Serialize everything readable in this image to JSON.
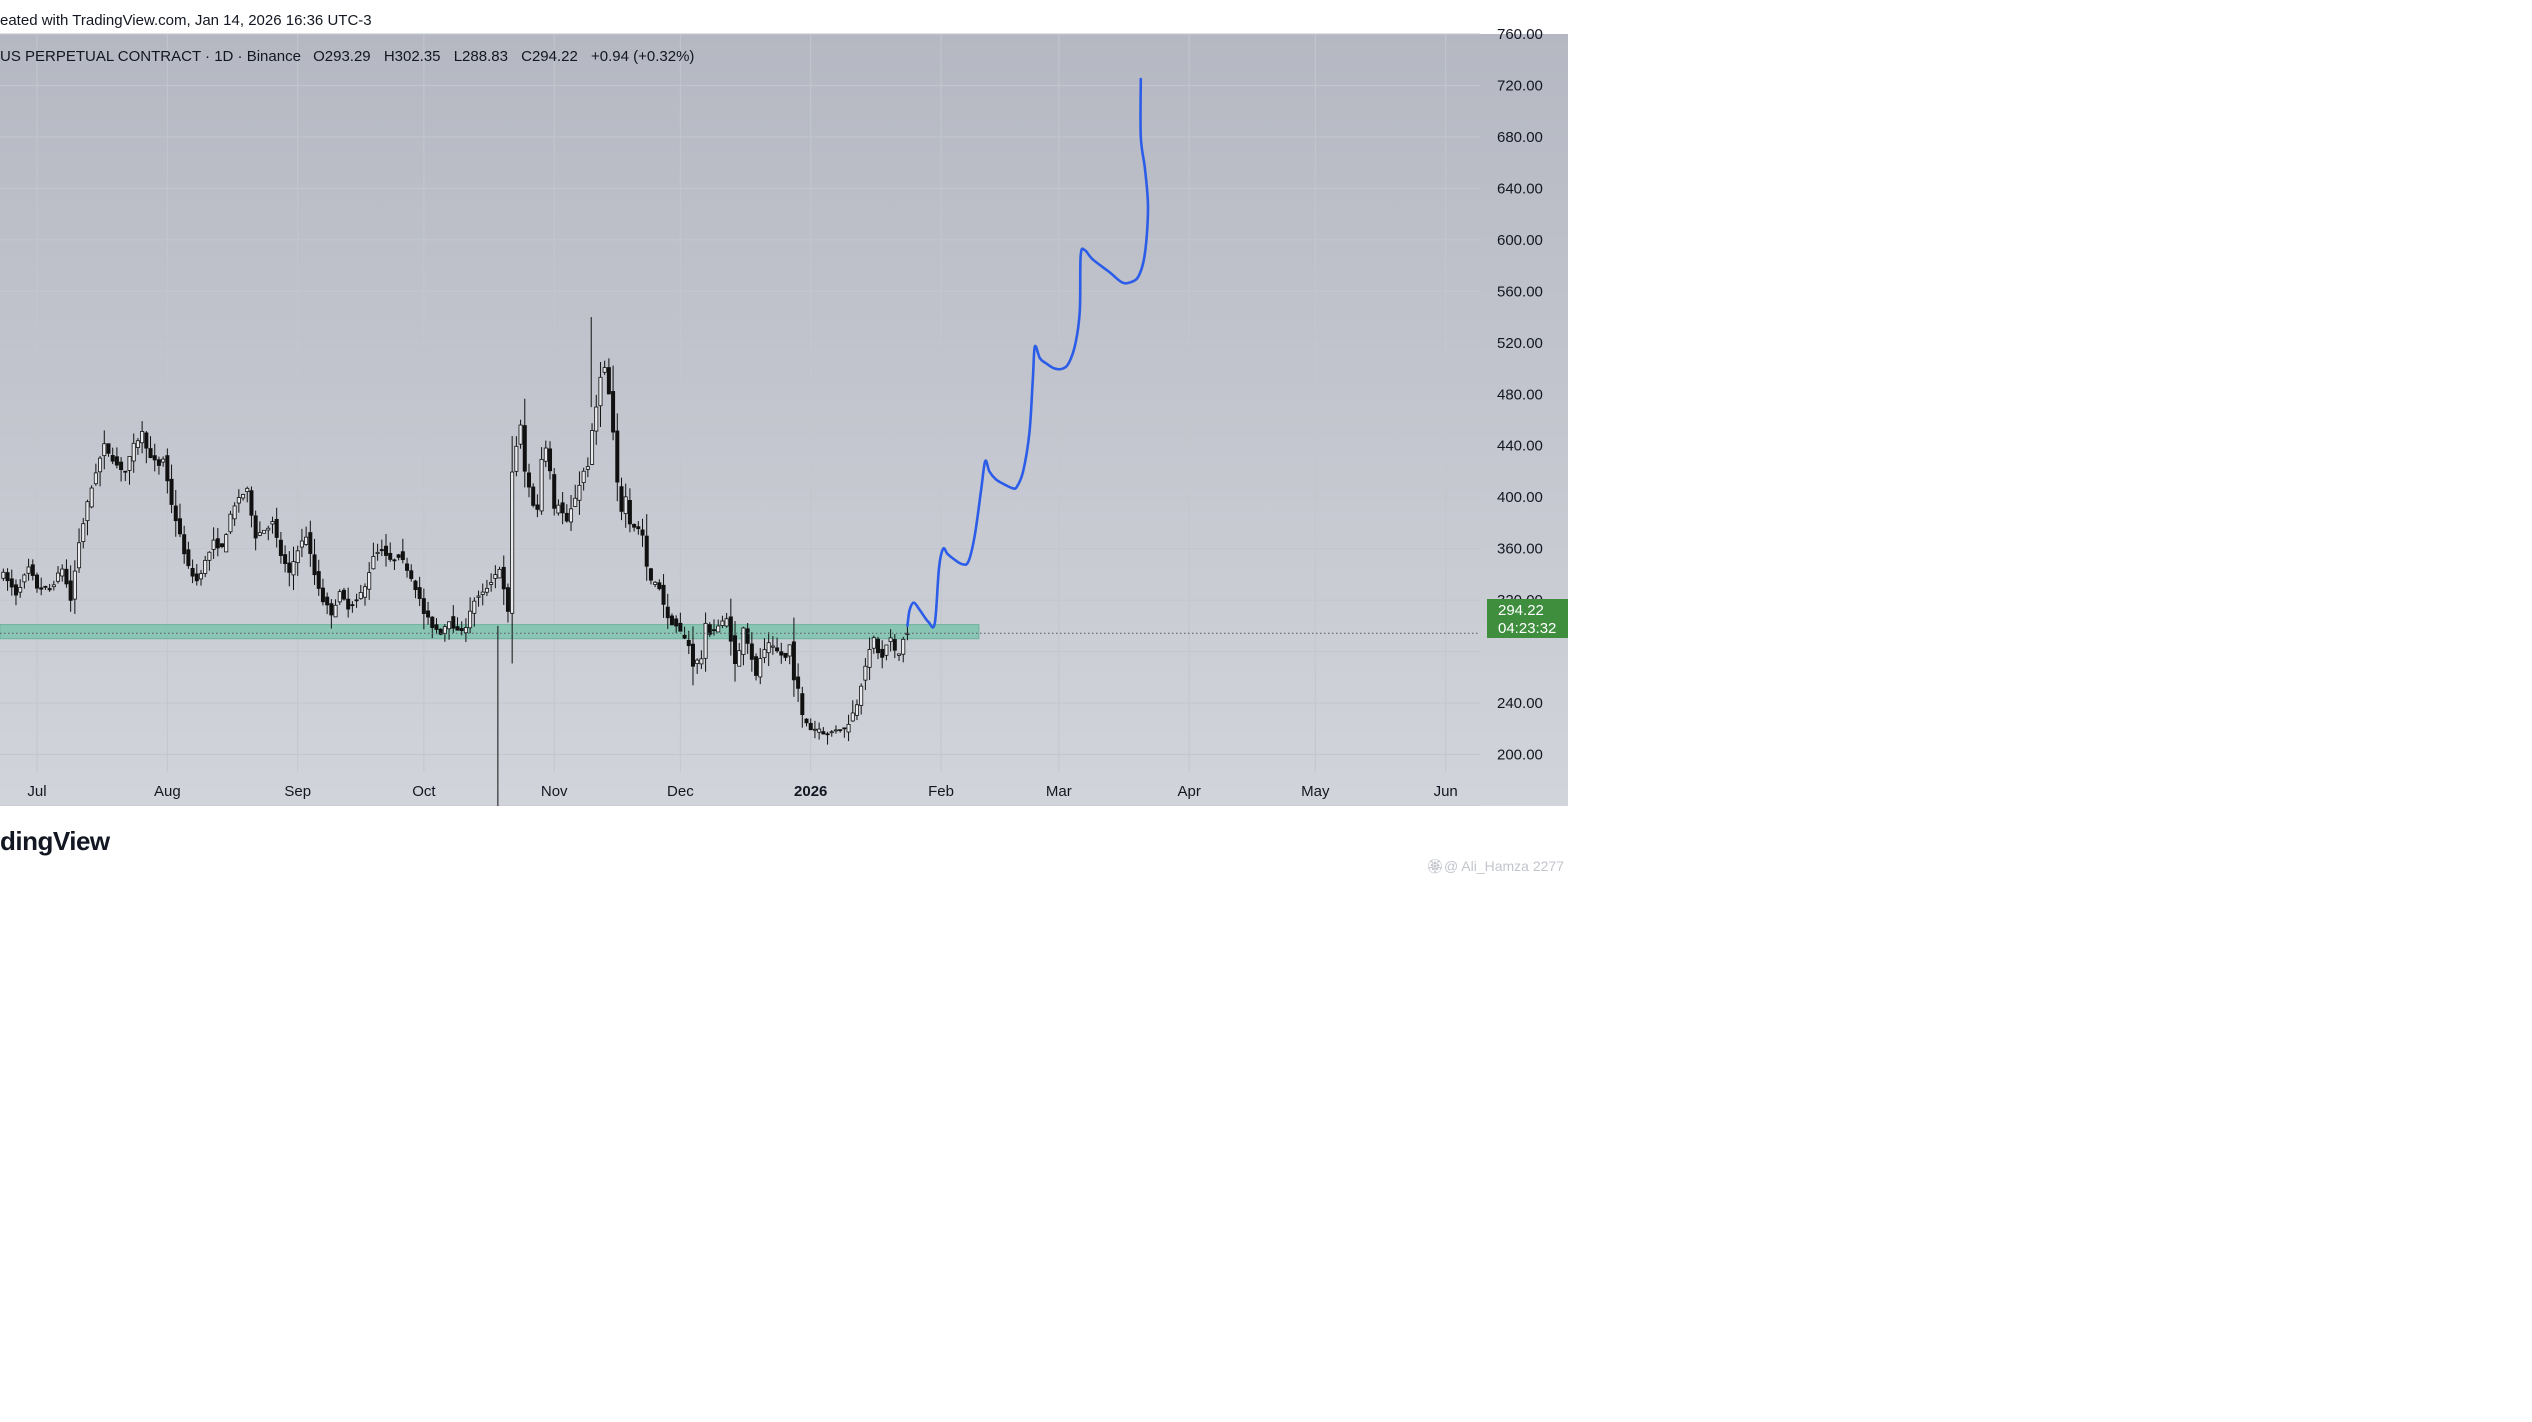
{
  "header": {
    "created_text": "eated with TradingView.com, Jan 14, 2026 16:36 UTC-3"
  },
  "symbol_line": {
    "name": "US PERPETUAL CONTRACT · 1D · Binance",
    "open": "O293.29",
    "high": "H302.35",
    "low": "L288.83",
    "close": "C294.22",
    "change": "+0.94 (+0.32%)"
  },
  "price_tag": {
    "price": "294.22",
    "countdown": "04:23:32",
    "color": "#3e8e3e"
  },
  "footer": {
    "brand": "dingView",
    "watermark": "🏵@ Ali_Hamza 2277"
  },
  "colors": {
    "plot_bg_top": "#b5b8c2",
    "plot_bg_bottom": "#d2d4db",
    "candle": "#111111",
    "support_zone": "#7ec3ad",
    "projection": "#2b5de8",
    "grid": "#c3c6ce"
  },
  "chart_data": {
    "type": "candlestick",
    "interval": "1D",
    "ylim": [
      160,
      760
    ],
    "y_ticks": [
      "760.00",
      "720.00",
      "680.00",
      "640.00",
      "600.00",
      "560.00",
      "520.00",
      "480.00",
      "440.00",
      "400.00",
      "360.00",
      "320.00",
      "240.00",
      "200.00"
    ],
    "x_ticks": [
      {
        "label": "Jul",
        "day": 0,
        "bold": false
      },
      {
        "label": "Aug",
        "day": 31,
        "bold": false
      },
      {
        "label": "Sep",
        "day": 62,
        "bold": false
      },
      {
        "label": "Oct",
        "day": 92,
        "bold": false
      },
      {
        "label": "Nov",
        "day": 123,
        "bold": false
      },
      {
        "label": "Dec",
        "day": 153,
        "bold": false
      },
      {
        "label": "2026",
        "day": 184,
        "bold": true
      },
      {
        "label": "Feb",
        "day": 215,
        "bold": false
      },
      {
        "label": "Mar",
        "day": 243,
        "bold": false
      },
      {
        "label": "Apr",
        "day": 274,
        "bold": false
      },
      {
        "label": "May",
        "day": 304,
        "bold": false
      },
      {
        "label": "Jun",
        "day": 335,
        "bold": false
      }
    ],
    "current_price": 294.22,
    "support_zone": {
      "low": 290,
      "high": 301,
      "to_day": 224
    },
    "close_path": [
      [
        -8,
        340
      ],
      [
        -5,
        325
      ],
      [
        -2,
        345
      ],
      [
        0,
        330
      ],
      [
        3,
        328
      ],
      [
        6,
        345
      ],
      [
        8,
        320
      ],
      [
        10,
        365
      ],
      [
        12,
        395
      ],
      [
        14,
        420
      ],
      [
        16,
        440
      ],
      [
        19,
        425
      ],
      [
        21,
        420
      ],
      [
        23,
        440
      ],
      [
        25,
        450
      ],
      [
        27,
        430
      ],
      [
        29,
        425
      ],
      [
        30,
        430
      ],
      [
        32,
        395
      ],
      [
        34,
        370
      ],
      [
        36,
        345
      ],
      [
        38,
        335
      ],
      [
        40,
        350
      ],
      [
        42,
        365
      ],
      [
        44,
        360
      ],
      [
        46,
        385
      ],
      [
        48,
        400
      ],
      [
        50,
        405
      ],
      [
        52,
        370
      ],
      [
        54,
        375
      ],
      [
        56,
        380
      ],
      [
        58,
        355
      ],
      [
        60,
        340
      ],
      [
        62,
        360
      ],
      [
        64,
        370
      ],
      [
        66,
        340
      ],
      [
        68,
        320
      ],
      [
        70,
        310
      ],
      [
        72,
        325
      ],
      [
        74,
        315
      ],
      [
        76,
        320
      ],
      [
        78,
        330
      ],
      [
        80,
        355
      ],
      [
        82,
        360
      ],
      [
        84,
        350
      ],
      [
        86,
        355
      ],
      [
        88,
        345
      ],
      [
        90,
        330
      ],
      [
        92,
        310
      ],
      [
        94,
        300
      ],
      [
        96,
        295
      ],
      [
        98,
        305
      ],
      [
        100,
        295
      ],
      [
        102,
        300
      ],
      [
        104,
        320
      ],
      [
        106,
        325
      ],
      [
        108,
        335
      ],
      [
        110,
        345
      ],
      [
        112,
        310
      ],
      [
        113,
        420
      ],
      [
        114,
        440
      ],
      [
        115,
        455
      ],
      [
        116,
        420
      ],
      [
        118,
        395
      ],
      [
        119,
        390
      ],
      [
        120,
        430
      ],
      [
        121,
        440
      ],
      [
        122,
        420
      ],
      [
        123,
        390
      ],
      [
        124,
        395
      ],
      [
        126,
        380
      ],
      [
        128,
        400
      ],
      [
        129,
        410
      ],
      [
        130,
        420
      ],
      [
        131,
        425
      ],
      [
        132,
        450
      ],
      [
        133,
        470
      ],
      [
        134,
        495
      ],
      [
        135,
        500
      ],
      [
        136,
        480
      ],
      [
        137,
        450
      ],
      [
        138,
        410
      ],
      [
        139,
        390
      ],
      [
        140,
        400
      ],
      [
        141,
        380
      ],
      [
        143,
        375
      ],
      [
        144,
        370
      ],
      [
        145,
        345
      ],
      [
        146,
        335
      ],
      [
        148,
        330
      ],
      [
        150,
        305
      ],
      [
        152,
        300
      ],
      [
        154,
        290
      ],
      [
        155,
        285
      ],
      [
        156,
        270
      ],
      [
        158,
        275
      ],
      [
        159,
        300
      ],
      [
        160,
        295
      ],
      [
        162,
        300
      ],
      [
        164,
        305
      ],
      [
        165,
        290
      ],
      [
        166,
        270
      ],
      [
        167,
        280
      ],
      [
        168,
        300
      ],
      [
        170,
        275
      ],
      [
        171,
        260
      ],
      [
        172,
        275
      ],
      [
        174,
        285
      ],
      [
        176,
        280
      ],
      [
        178,
        275
      ],
      [
        179,
        285
      ],
      [
        180,
        260
      ],
      [
        181,
        250
      ],
      [
        182,
        230
      ],
      [
        184,
        220
      ],
      [
        186,
        220
      ],
      [
        188,
        215
      ],
      [
        190,
        220
      ],
      [
        192,
        220
      ],
      [
        193,
        225
      ],
      [
        194,
        232
      ],
      [
        195,
        240
      ],
      [
        196,
        255
      ],
      [
        197,
        270
      ],
      [
        198,
        280
      ],
      [
        199,
        290
      ],
      [
        200,
        280
      ],
      [
        201,
        275
      ],
      [
        202,
        285
      ],
      [
        203,
        290
      ],
      [
        204,
        280
      ],
      [
        205,
        278
      ],
      [
        206,
        290
      ],
      [
        207,
        294.22
      ]
    ],
    "projection_path": [
      [
        207,
        300
      ],
      [
        207.5,
        312
      ],
      [
        208.5,
        318
      ],
      [
        210,
        312
      ],
      [
        212,
        303
      ],
      [
        213.5,
        302
      ],
      [
        214.5,
        345
      ],
      [
        215.5,
        360
      ],
      [
        216.5,
        356
      ],
      [
        218,
        352
      ],
      [
        220,
        348
      ],
      [
        221.5,
        350
      ],
      [
        223,
        370
      ],
      [
        224.5,
        405
      ],
      [
        225.5,
        428
      ],
      [
        226.5,
        420
      ],
      [
        228,
        414
      ],
      [
        230,
        410
      ],
      [
        232,
        407
      ],
      [
        233,
        408
      ],
      [
        234.5,
        420
      ],
      [
        236,
        450
      ],
      [
        236.8,
        490
      ],
      [
        237.3,
        517
      ],
      [
        238.5,
        508
      ],
      [
        240,
        504
      ],
      [
        242,
        500
      ],
      [
        244,
        500
      ],
      [
        245.5,
        505
      ],
      [
        247,
        520
      ],
      [
        248,
        545
      ],
      [
        248.2,
        588
      ],
      [
        249.2,
        592
      ],
      [
        251,
        585
      ],
      [
        255,
        575
      ],
      [
        258,
        567
      ],
      [
        260,
        567
      ],
      [
        262,
        572
      ],
      [
        263.5,
        590
      ],
      [
        264.2,
        625
      ],
      [
        263.5,
        655
      ],
      [
        262.5,
        680
      ],
      [
        262.5,
        725
      ]
    ]
  }
}
